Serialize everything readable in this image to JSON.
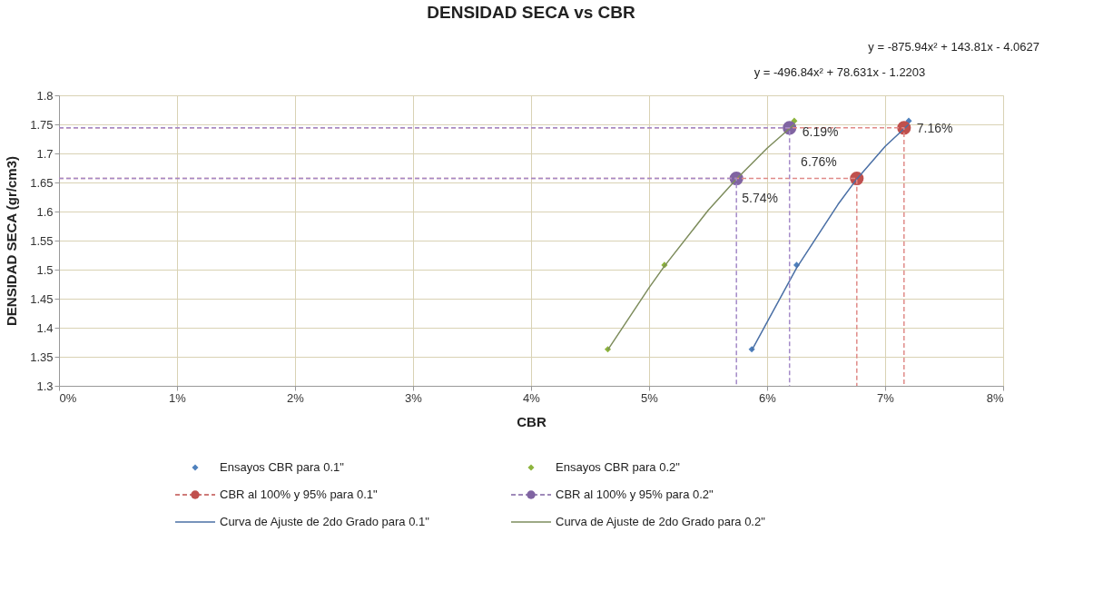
{
  "chart_data": {
    "type": "scatter",
    "title": "DENSIDAD SECA vs CBR",
    "xlabel": "CBR",
    "ylabel": "DENSIDAD SECA (gr/cm3)",
    "xlim": [
      0,
      8
    ],
    "ylim": [
      1.3,
      1.8
    ],
    "xticks": [
      {
        "value": 0,
        "label": "0%"
      },
      {
        "value": 1,
        "label": "1%"
      },
      {
        "value": 2,
        "label": "2%"
      },
      {
        "value": 3,
        "label": "3%"
      },
      {
        "value": 4,
        "label": "4%"
      },
      {
        "value": 5,
        "label": "5%"
      },
      {
        "value": 6,
        "label": "6%"
      },
      {
        "value": 7,
        "label": "7%"
      },
      {
        "value": 8,
        "label": "8%"
      }
    ],
    "yticks": [
      1.3,
      1.35,
      1.4,
      1.45,
      1.5,
      1.55,
      1.6,
      1.65,
      1.7,
      1.75,
      1.8
    ],
    "grid": true,
    "legend": "bottom",
    "series": [
      {
        "name": "Ensayos CBR para 0.1\"",
        "marker": "diamond",
        "color": "#4f81bd",
        "x": [
          5.87,
          6.25,
          7.2
        ],
        "values": [
          1.363,
          1.508,
          1.756
        ]
      },
      {
        "name": "Ensayos CBR para 0.2\"",
        "marker": "diamond",
        "color": "#8db43d",
        "x": [
          4.65,
          5.13,
          6.23
        ],
        "values": [
          1.363,
          1.508,
          1.756
        ]
      },
      {
        "name": "CBR al 100% y 95% para 0.1\"",
        "marker": "circle",
        "line_style": "dashed",
        "color": "#c0504d",
        "x": [
          6.76,
          7.16
        ],
        "values": [
          1.657,
          1.744
        ]
      },
      {
        "name": "CBR al 100% y 95% para 0.2\"",
        "marker": "circle",
        "line_style": "dashed",
        "color": "#8064a2",
        "x": [
          5.74,
          6.19
        ],
        "values": [
          1.657,
          1.744
        ]
      },
      {
        "name": "Curva de Ajuste de 2do Grado para 0.1\"",
        "type": "line",
        "marker": "none",
        "line_style": "solid",
        "color": "#4a6fa5",
        "x": [
          5.87,
          6.25,
          6.6,
          6.76,
          7.0,
          7.2
        ],
        "values": [
          1.361,
          1.503,
          1.612,
          1.656,
          1.712,
          1.75
        ]
      },
      {
        "name": "Curva de Ajuste de 2do Grado para 0.2\"",
        "type": "line",
        "marker": "none",
        "line_style": "solid",
        "color": "#7d8c5c",
        "x": [
          4.65,
          5.0,
          5.13,
          5.5,
          5.74,
          6.0,
          6.23
        ],
        "values": [
          1.362,
          1.469,
          1.506,
          1.602,
          1.656,
          1.709,
          1.75
        ]
      },
      {
        "type": "line",
        "marker": "none",
        "line_style": "dashed",
        "color": "#e08a88",
        "x": [
          0,
          6.76,
          6.76,
          null,
          0,
          7.16,
          7.16
        ],
        "values": [
          1.657,
          1.657,
          1.3,
          null,
          1.744,
          1.744,
          1.3
        ]
      },
      {
        "type": "line",
        "marker": "none",
        "line_style": "dashed",
        "color": "#a48ac8",
        "x": [
          0,
          5.74,
          5.74,
          null,
          0,
          6.19,
          6.19
        ],
        "values": [
          1.657,
          1.657,
          1.3,
          null,
          1.744,
          1.744,
          1.3
        ]
      }
    ],
    "annotations": [
      "y = -875.94x² + 143.81x - 4.0627",
      "y = -496.84x² + 78.631x - 1.2203",
      {
        "text": "6.19%",
        "x": 6.19,
        "y": 1.744
      },
      {
        "text": "7.16%",
        "x": 7.16,
        "y": 1.744
      },
      {
        "text": "6.76%",
        "x": 6.76,
        "y": 1.657
      },
      {
        "text": "5.74%",
        "x": 5.74,
        "y": 1.657
      }
    ]
  }
}
